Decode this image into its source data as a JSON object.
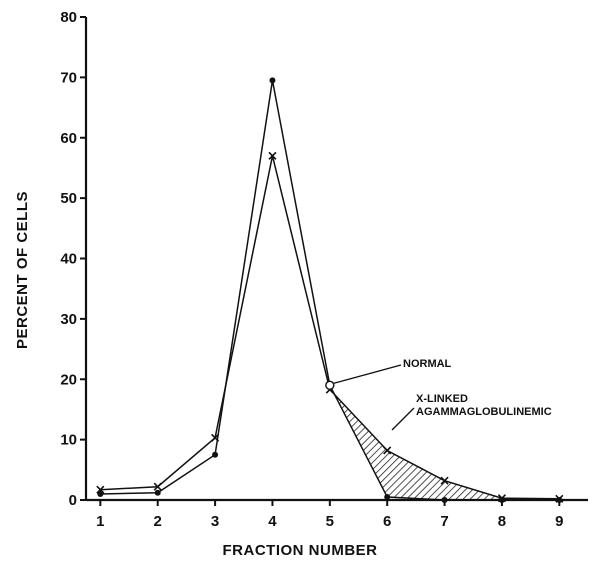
{
  "chart_data": {
    "type": "line",
    "title": "",
    "xlabel": "FRACTION NUMBER",
    "ylabel": "PERCENT OF CELLS",
    "x": [
      1,
      2,
      3,
      4,
      5,
      6,
      7,
      8,
      9
    ],
    "xlim": [
      0.75,
      9.5
    ],
    "ylim": [
      0,
      80
    ],
    "x_ticks": [
      "1",
      "2",
      "3",
      "4",
      "5",
      "6",
      "7",
      "8",
      "9"
    ],
    "y_ticks": [
      "0",
      "10",
      "20",
      "30",
      "40",
      "50",
      "60",
      "70",
      "80"
    ],
    "grid": false,
    "series": [
      {
        "name": "NORMAL",
        "marker": "dot",
        "values": [
          1,
          1.2,
          7.5,
          69.5,
          19,
          0.5,
          0,
          0,
          0
        ]
      },
      {
        "name": "X-LINKED AGAMMAGLOBULINEMIC",
        "marker": "x",
        "values": [
          1.7,
          2.2,
          10.3,
          57,
          18.3,
          8.2,
          3.2,
          0.3,
          0.2
        ]
      }
    ],
    "annotations": {
      "normal": "NORMAL",
      "xlinked_line1": "X-LINKED",
      "xlinked_line2": "AGAMMAGLOBULINEMIC"
    },
    "shaded_region": "between series from fraction 5 to 9"
  }
}
